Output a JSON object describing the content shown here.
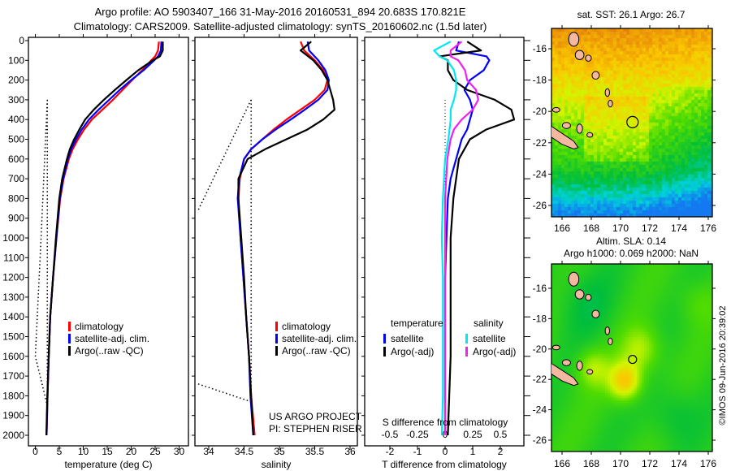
{
  "title_line1": "Argo profile: AO 5903407_166 31-May-2016 20160531_894 20.683S 170.821E",
  "title_line2": "Climatology: CARS2009. Satellite-adjusted climatology: synTS_20160602.nc (1.5d later)",
  "credit": "©IMOS 09-Jun-2016 20:39:02",
  "colors": {
    "climatology": "#ff0000",
    "satellite": "#0000ff",
    "argo": "#000000",
    "s_satellite": "#00e8f0",
    "s_argo": "#f020f0",
    "land": "#f4b8a0"
  },
  "chart_data": [
    {
      "type": "line",
      "name": "temperature",
      "xlabel": "temperature (deg C)",
      "xlim": [
        -1.5,
        32
      ],
      "ylim": [
        0,
        2060
      ],
      "xticks": [
        "0",
        "5",
        "10",
        "15",
        "20",
        "25",
        "30"
      ],
      "xtick_values": [
        0,
        5,
        10,
        15,
        20,
        25,
        30
      ],
      "yticks": [
        "0",
        "100",
        "200",
        "300",
        "400",
        "500",
        "600",
        "700",
        "800",
        "900",
        "1000",
        "1100",
        "1200",
        "1300",
        "1400",
        "1500",
        "1600",
        "1700",
        "1800",
        "1900",
        "2000"
      ],
      "depth": [
        5,
        50,
        80,
        100,
        150,
        200,
        250,
        300,
        350,
        400,
        450,
        500,
        550,
        600,
        700,
        800,
        1000,
        1200,
        1400,
        1600,
        1800,
        2000
      ],
      "series": [
        {
          "name": "climatology",
          "color": "#ff0000",
          "values": [
            25.8,
            25.6,
            25.0,
            24.2,
            22.3,
            20.2,
            18.2,
            16.2,
            14.0,
            11.8,
            10.2,
            8.9,
            7.8,
            7.0,
            5.9,
            5.2,
            4.4,
            3.7,
            3.1,
            2.8,
            2.55,
            2.35
          ]
        },
        {
          "name": "satellite-adj. clim.",
          "color": "#0000ff",
          "values": [
            26.3,
            26.2,
            25.6,
            24.8,
            22.6,
            20.0,
            17.6,
            15.4,
            13.2,
            11.2,
            9.7,
            8.5,
            7.5,
            6.8,
            5.8,
            5.1,
            4.4,
            3.7,
            3.1,
            2.8,
            2.55,
            2.35
          ]
        },
        {
          "name": "Argo(..raw -QC)",
          "color": "#000000",
          "values": [
            26.6,
            26.6,
            26.0,
            24.5,
            21.5,
            19.0,
            16.6,
            14.3,
            12.2,
            10.4,
            9.2,
            8.1,
            7.2,
            6.6,
            5.6,
            5.0,
            4.3,
            3.7,
            3.1,
            2.8,
            2.5,
            2.3
          ]
        }
      ],
      "std_dotted": {
        "depth": [
          300,
          1000,
          1600,
          1850
        ],
        "values": [
          2.5,
          1.2,
          0.0,
          2.5
        ],
        "vertical_value": 2.5,
        "vertical_depth": [
          300,
          1850
        ]
      },
      "legend": [
        "climatology",
        "satellite-adj. clim.",
        "Argo(..raw -QC)"
      ],
      "legend_position": "bottom-center"
    },
    {
      "type": "line",
      "name": "salinity",
      "xlabel": "salinity",
      "xlim": [
        33.8,
        36.1
      ],
      "ylim": [
        0,
        2060
      ],
      "xticks": [
        "34",
        "34.5",
        "35",
        "35.5",
        "36"
      ],
      "xtick_values": [
        34,
        34.5,
        35,
        35.5,
        36
      ],
      "depth": [
        5,
        50,
        100,
        150,
        200,
        250,
        300,
        350,
        400,
        450,
        500,
        550,
        600,
        700,
        800,
        1000,
        1200,
        1400,
        1600,
        1800,
        2000
      ],
      "series": [
        {
          "name": "climatology",
          "color": "#ff0000",
          "values": [
            35.3,
            35.35,
            35.5,
            35.62,
            35.68,
            35.64,
            35.5,
            35.3,
            35.1,
            34.92,
            34.76,
            34.6,
            34.5,
            34.44,
            34.42,
            34.45,
            34.49,
            34.53,
            34.57,
            34.6,
            34.65
          ]
        },
        {
          "name": "satellite-adj. clim.",
          "color": "#0000ff",
          "values": [
            35.4,
            35.42,
            35.55,
            35.65,
            35.7,
            35.68,
            35.55,
            35.36,
            35.16,
            34.95,
            34.76,
            34.6,
            34.5,
            34.43,
            34.41,
            34.45,
            34.49,
            34.53,
            34.57,
            34.59,
            34.63
          ]
        },
        {
          "name": "Argo(..raw -QC)",
          "color": "#000000",
          "values": [
            35.45,
            35.3,
            35.48,
            35.6,
            35.68,
            35.72,
            35.76,
            35.78,
            35.62,
            35.4,
            35.1,
            34.8,
            34.55,
            34.42,
            34.42,
            34.46,
            34.5,
            34.53,
            34.57,
            34.6,
            34.63
          ]
        }
      ],
      "std_dotted": {
        "diag_depth": [
          300,
          860
        ],
        "diag_values": [
          34.6,
          33.85
        ],
        "low_depth": [
          1740,
          1830
        ],
        "low_values": [
          33.85,
          34.6
        ],
        "vertical_value": 34.6,
        "vertical_depth": [
          300,
          1830
        ]
      },
      "legend": [
        "climatology",
        "satellite-adj. clim.",
        "Argo(..raw -QC)"
      ],
      "legend_position": "bottom-right",
      "annotation": [
        "US ARGO PROJECT",
        "PI: STEPHEN RISER"
      ]
    },
    {
      "type": "line",
      "name": "differences",
      "xlabel": "T difference from climatology",
      "s_label": "S difference from climatology",
      "xlim": [
        -2.9,
        2.85
      ],
      "ylim": [
        0,
        2060
      ],
      "xticks": [
        "-2",
        "-1",
        "0",
        "1",
        "2"
      ],
      "xtick_values": [
        -2,
        -1,
        0,
        1,
        2
      ],
      "s_ticks": [
        "-0.5",
        "-0.25",
        "0",
        "0.25",
        "0.5"
      ],
      "s_tick_values": [
        -0.5,
        -0.25,
        0,
        0.25,
        0.5
      ],
      "s_scale": 4,
      "depth": [
        5,
        50,
        80,
        100,
        150,
        200,
        250,
        300,
        350,
        400,
        450,
        500,
        600,
        700,
        800,
        1000,
        1200,
        1400,
        1600,
        1800,
        2000
      ],
      "series": [
        {
          "name": "satellite",
          "group": "temperature",
          "color": "#0000ff",
          "values": [
            0.5,
            0.4,
            1.5,
            1.6,
            1.4,
            0.9,
            0.7,
            0.9,
            1.0,
            0.9,
            0.8,
            0.6,
            0.4,
            0.2,
            0.1,
            0.05,
            0.0,
            0.0,
            0.0,
            0.0,
            0.0
          ]
        },
        {
          "name": "Argo(-adj)",
          "group": "temperature",
          "color": "#000000",
          "values": [
            0.8,
            1.3,
            -0.2,
            0.1,
            0.1,
            0.3,
            0.8,
            1.8,
            2.4,
            2.5,
            1.5,
            0.9,
            0.5,
            0.4,
            0.3,
            0.2,
            0.2,
            0.2,
            0.2,
            0.15,
            0.1
          ]
        },
        {
          "name": "satellite",
          "group": "salinity",
          "color": "#00e8f0",
          "values": [
            0.05,
            -0.1,
            -0.05,
            0.02,
            0.08,
            0.1,
            0.1,
            0.08,
            0.05,
            0.05,
            0.04,
            0.03,
            0.0,
            -0.01,
            -0.02,
            -0.03,
            -0.02,
            -0.02,
            -0.02,
            -0.02,
            -0.03
          ]
        },
        {
          "name": "Argo(-adj)",
          "group": "salinity",
          "color": "#f020f0",
          "values": [
            0.15,
            0.05,
            0.05,
            0.12,
            0.18,
            0.2,
            0.28,
            0.3,
            0.25,
            0.15,
            0.08,
            0.05,
            0.02,
            0.01,
            0.0,
            0.0,
            0.0,
            0.0,
            0.0,
            0.0,
            0.0
          ]
        }
      ],
      "legend_headers": [
        "temperature",
        "salinity"
      ],
      "legend": [
        "satellite",
        "Argo(-adj)",
        "satellite",
        "Argo(-adj)"
      ],
      "legend_position": "bottom"
    }
  ],
  "maps": [
    {
      "name": "sst-map",
      "title": "sat. SST: 26.1  Argo: 26.7",
      "field": "SST",
      "lon_ticks": [
        "166",
        "168",
        "170",
        "172",
        "174",
        "176"
      ],
      "lon_values": [
        166,
        168,
        170,
        172,
        174,
        176
      ],
      "lat_ticks": [
        "-16",
        "-18",
        "-20",
        "-22",
        "-24",
        "-26"
      ],
      "lat_values": [
        -16,
        -18,
        -20,
        -22,
        -24,
        -26
      ],
      "argo_lon": 170.821,
      "argo_lat": -20.683
    },
    {
      "name": "sla-map",
      "title1": "Altim. SLA: 0.14",
      "title2": "Argo h1000: 0.069 h2000: NaN",
      "field": "SLA",
      "lon_ticks": [
        "166",
        "168",
        "170",
        "172",
        "174",
        "176"
      ],
      "lon_values": [
        166,
        168,
        170,
        172,
        174,
        176
      ],
      "lat_ticks": [
        "-16",
        "-18",
        "-20",
        "-22",
        "-24",
        "-26"
      ],
      "lat_values": [
        -16,
        -18,
        -20,
        -22,
        -24,
        -26
      ],
      "argo_lon": 170.821,
      "argo_lat": -20.683
    }
  ],
  "islands": [
    {
      "lon": 166.8,
      "lat": -15.4,
      "rlon": 0.35,
      "rlat": 0.45
    },
    {
      "lon": 167.2,
      "lat": -16.4,
      "rlon": 0.3,
      "rlat": 0.3
    },
    {
      "lon": 167.8,
      "lat": -16.6,
      "rlon": 0.2,
      "rlat": 0.2
    },
    {
      "lon": 168.3,
      "lat": -17.7,
      "rlon": 0.25,
      "rlat": 0.25
    },
    {
      "lon": 169.1,
      "lat": -18.8,
      "rlon": 0.15,
      "rlat": 0.25
    },
    {
      "lon": 169.3,
      "lat": -19.5,
      "rlon": 0.15,
      "rlat": 0.22
    },
    {
      "lon": 165.6,
      "lat": -19.9,
      "rlon": 0.25,
      "rlat": 0.15
    },
    {
      "lon": 166.3,
      "lat": -20.9,
      "rlon": 0.28,
      "rlat": 0.2
    },
    {
      "lon": 167.2,
      "lat": -21.1,
      "rlon": 0.2,
      "rlat": 0.3
    },
    {
      "lon": 167.9,
      "lat": -21.5,
      "rlon": 0.2,
      "rlat": 0.15
    }
  ],
  "mainland": [
    [
      165.2,
      -20.9
    ],
    [
      166.0,
      -21.4
    ],
    [
      166.8,
      -21.9
    ],
    [
      167.1,
      -22.3
    ],
    [
      166.8,
      -22.4
    ],
    [
      166.0,
      -22.1
    ],
    [
      165.2,
      -21.6
    ]
  ]
}
